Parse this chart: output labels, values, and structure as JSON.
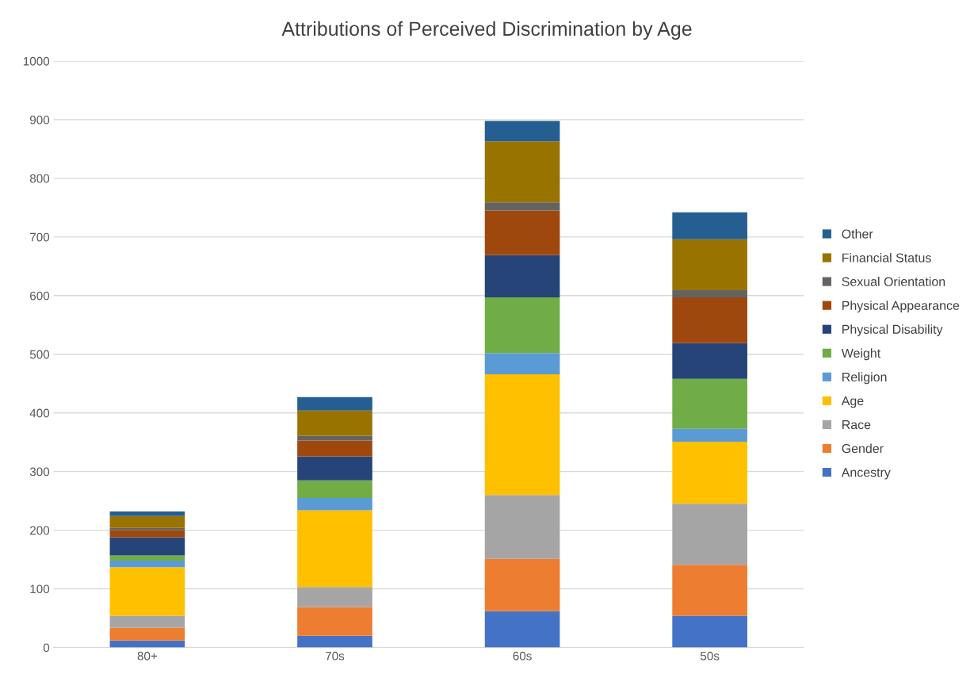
{
  "chart_data": {
    "type": "bar",
    "title": "Attributions of Perceived Discrimination by Age",
    "stacked": true,
    "grid": "y",
    "legend": "right",
    "categories": [
      "80+",
      "70s",
      "60s",
      "50s"
    ],
    "ylim": [
      0,
      1000
    ],
    "yticks": [
      0,
      100,
      200,
      300,
      400,
      500,
      600,
      700,
      800,
      900,
      1000
    ],
    "series": [
      {
        "name": "Ancestry",
        "color": "#4472c4",
        "values": [
          12,
          20,
          62,
          54
        ]
      },
      {
        "name": "Gender",
        "color": "#ed7d31",
        "values": [
          22,
          49,
          89,
          87
        ]
      },
      {
        "name": "Race",
        "color": "#a5a5a5",
        "values": [
          20,
          34,
          109,
          104
        ]
      },
      {
        "name": "Age",
        "color": "#ffc000",
        "values": [
          83,
          131,
          206,
          106
        ]
      },
      {
        "name": "Religion",
        "color": "#5b9bd5",
        "values": [
          11,
          21,
          36,
          22
        ]
      },
      {
        "name": "Weight",
        "color": "#70ad47",
        "values": [
          9,
          30,
          95,
          85
        ]
      },
      {
        "name": "Physical Disability",
        "color": "#264478",
        "values": [
          31,
          41,
          72,
          61
        ]
      },
      {
        "name": "Physical Appearance",
        "color": "#9e480e",
        "values": [
          12,
          27,
          76,
          78
        ]
      },
      {
        "name": "Sexual Orientation",
        "color": "#636363",
        "values": [
          4,
          8,
          14,
          12
        ]
      },
      {
        "name": "Financial Status",
        "color": "#997300",
        "values": [
          20,
          43,
          104,
          87
        ]
      },
      {
        "name": "Other",
        "color": "#255e91",
        "values": [
          8,
          23,
          35,
          46
        ]
      }
    ]
  }
}
